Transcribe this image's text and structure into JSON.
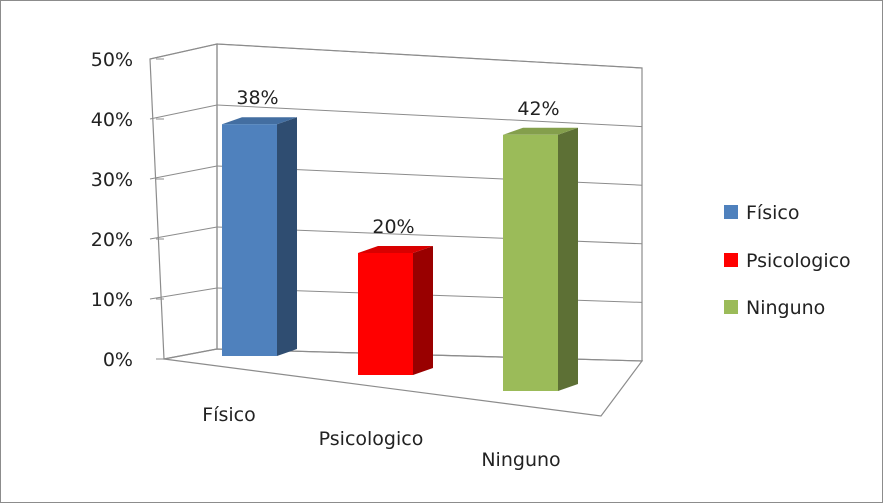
{
  "chart_data": {
    "type": "bar",
    "categories": [
      "Físico",
      "Psicologico",
      "Ninguno"
    ],
    "values": [
      38,
      20,
      42
    ],
    "data_labels": [
      "38%",
      "20%",
      "42%"
    ],
    "ylim": [
      0,
      50
    ],
    "y_ticks": [
      "0%",
      "10%",
      "20%",
      "30%",
      "40%",
      "50%"
    ],
    "grid": true,
    "three_d": true,
    "legend_position": "right",
    "legend": [
      "Físico",
      "Psicologico",
      "Ninguno"
    ],
    "colors": [
      "#4F81BD",
      "#FF0000",
      "#9BBB59"
    ]
  }
}
